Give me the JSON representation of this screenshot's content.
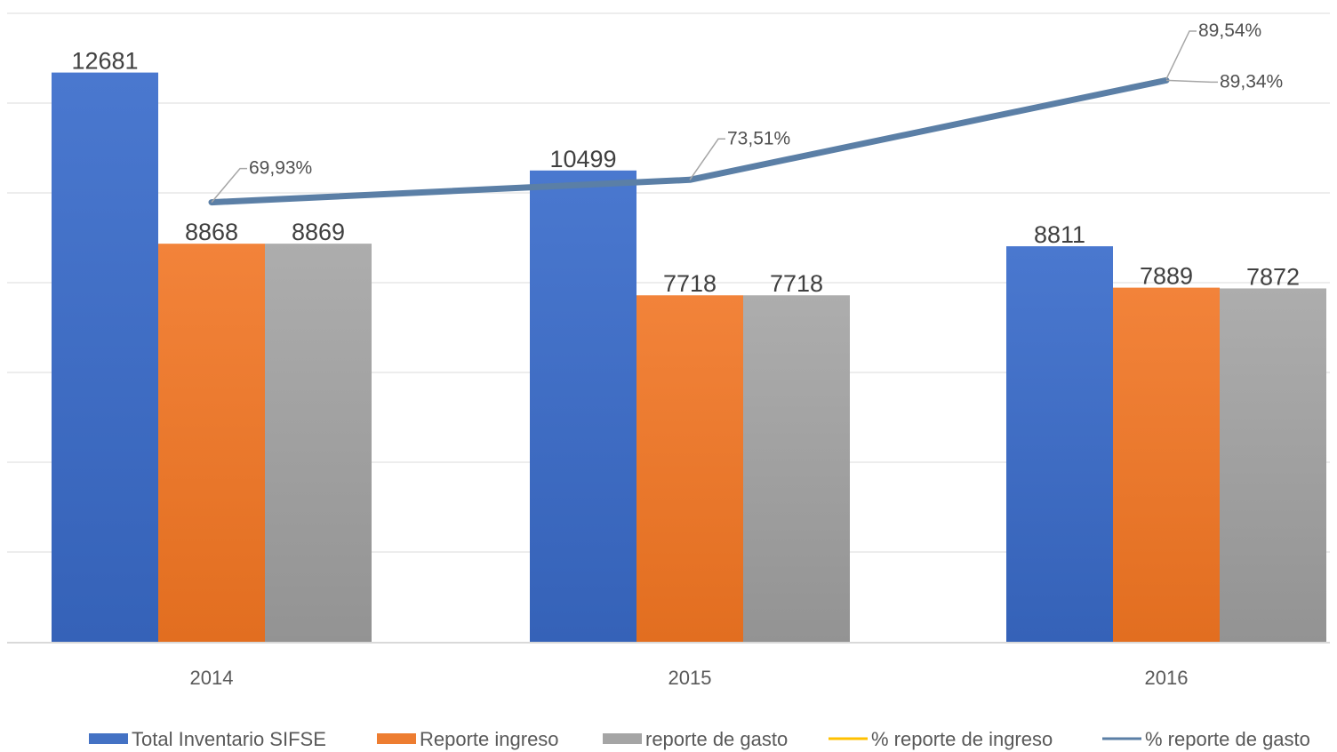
{
  "chart_data": {
    "type": "bar",
    "title": "",
    "xlabel": "",
    "ylabel": "",
    "categories": [
      "2014",
      "2015",
      "2016"
    ],
    "ylim": [
      0,
      14000
    ],
    "y2lim": [
      0,
      100
    ],
    "grid": true,
    "legend_position": "bottom",
    "series": [
      {
        "name": "Total Inventario SIFSE",
        "type": "bar",
        "color": "#4472C4",
        "values": [
          12681,
          10499,
          8811
        ],
        "labels": [
          "12681",
          "10499",
          "8811"
        ]
      },
      {
        "name": "Reporte ingreso",
        "type": "bar",
        "color": "#ED7D31",
        "values": [
          8868,
          7718,
          7889
        ],
        "labels": [
          "8868",
          "7718",
          "7889"
        ]
      },
      {
        "name": "reporte de gasto",
        "type": "bar",
        "color": "#A5A5A5",
        "values": [
          8869,
          7718,
          7872
        ],
        "labels": [
          "8869",
          "7718",
          "7872"
        ]
      },
      {
        "name": "% reporte de ingreso",
        "type": "line",
        "color": "#FFC000",
        "values": [
          69.93,
          73.51,
          89.54
        ],
        "labels": [
          "69,93%",
          "73,51%",
          "89,54%"
        ]
      },
      {
        "name": "% reporte de gasto",
        "type": "line",
        "color": "#5B7FA6",
        "values": [
          69.93,
          73.51,
          89.34
        ],
        "labels": [
          "",
          "",
          "89,34%"
        ]
      }
    ]
  }
}
